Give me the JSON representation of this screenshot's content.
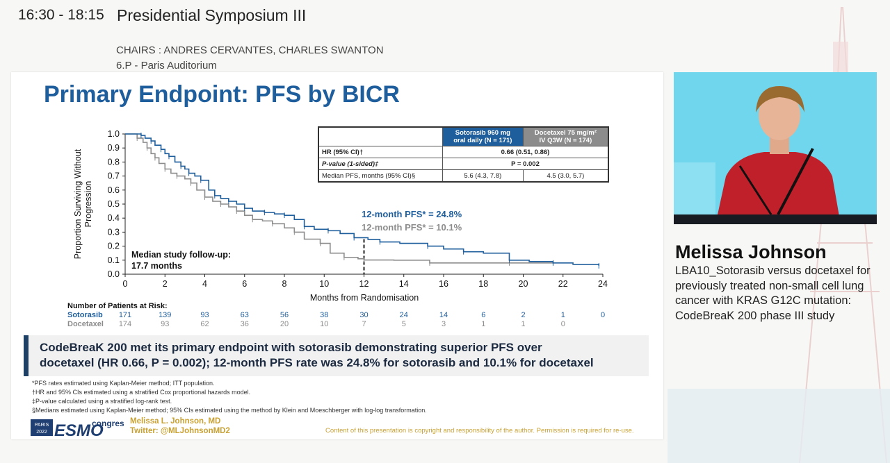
{
  "session": {
    "time": "16:30 - 18:15",
    "title": "Presidential Symposium III",
    "chairs": "CHAIRS : ANDRES CERVANTES, CHARLES SWANTON",
    "room": "6.P - Paris Auditorium"
  },
  "slide": {
    "title": "Primary Endpoint: PFS by BICR",
    "hr_table": {
      "col_sotorasib": [
        "Sotorasib 960 mg",
        "oral daily (N = 171)"
      ],
      "col_docetaxel": [
        "Docetaxel 75 mg/m²",
        "IV Q3W (N = 174)"
      ],
      "rows": [
        {
          "label": "HR (95% CI)†",
          "value": "0.66 (0.51, 0.86)"
        },
        {
          "label": "P-value (1-sided)‡",
          "value": "P = 0.002"
        },
        {
          "label": "Median PFS, months (95% CI)§",
          "sotorasib": "5.6 (4.3, 7.8)",
          "docetaxel": "4.5 (3.0, 5.7)"
        }
      ]
    },
    "pfs12_sotorasib": "12-month PFS* = 24.8%",
    "pfs12_docetaxel": "12-month PFS* = 10.1%",
    "followup": [
      "Median study follow-up:",
      "17.7 months"
    ],
    "risk": {
      "title": "Number of Patients at Risk:",
      "label_sotorasib": "Sotorasib",
      "label_docetaxel": "Docetaxel",
      "sotorasib": [
        "171",
        "139",
        "93",
        "63",
        "56",
        "38",
        "30",
        "24",
        "14",
        "6",
        "2",
        "1",
        "0"
      ],
      "docetaxel": [
        "174",
        "93",
        "62",
        "36",
        "20",
        "10",
        "7",
        "5",
        "3",
        "1",
        "1",
        "0"
      ]
    },
    "conclusion": [
      "CodeBreaK 200 met its primary endpoint with sotorasib demonstrating superior PFS over",
      "docetaxel (HR 0.66, P = 0.002); 12-month PFS rate was 24.8% for sotorasib and 10.1% for docetaxel"
    ],
    "footnotes": [
      "*PFS rates estimated using Kaplan-Meier method; ITT population.",
      "†HR and 95% CIs estimated using a stratified Cox proportional hazards model.",
      "‡P-value calculated using a stratified log-rank test.",
      "§Medians estimated using Kaplan-Meier method; 95% CIs estimated using the method by Klein and Moeschberger with log-log transformation."
    ],
    "logo": {
      "city": "PARIS",
      "year": "2022",
      "name": "ESMO",
      "suffix": "congress"
    },
    "author_name": "Melissa L. Johnson, MD",
    "author_twitter": "Twitter: @MLJohnsonMD2",
    "copyright": "Content of this presentation is copyright and responsibility of the author. Permission is required for re-use."
  },
  "chart_data": {
    "type": "line",
    "title": "Primary Endpoint: PFS by BICR",
    "xlabel": "Months from Randomisation",
    "ylabel": "Proportion Surviving Without Progression",
    "xlim": [
      0,
      24
    ],
    "ylim": [
      0,
      1.0
    ],
    "xticks": [
      "0",
      "2",
      "4",
      "6",
      "8",
      "10",
      "12",
      "14",
      "16",
      "18",
      "20",
      "22",
      "24"
    ],
    "yticks": [
      "0.0",
      "0.1",
      "0.2",
      "0.3",
      "0.4",
      "0.5",
      "0.6",
      "0.7",
      "0.8",
      "0.9",
      "1.0"
    ],
    "reference_line_x": 12,
    "series": [
      {
        "name": "Sotorasib",
        "color": "#1f5e9c",
        "x": [
          0,
          0.8,
          1.0,
          1.3,
          1.5,
          1.8,
          2.0,
          2.2,
          2.5,
          2.8,
          3.0,
          3.2,
          3.5,
          3.8,
          4.2,
          4.5,
          4.8,
          5.2,
          5.6,
          6.0,
          6.4,
          7.0,
          7.5,
          8.0,
          8.5,
          9.0,
          9.5,
          10.2,
          10.8,
          11.5,
          12.2,
          12.8,
          13.8,
          15.2,
          16.0,
          17.0,
          18.0,
          19.3,
          20.3,
          21.5,
          22.5,
          23.8
        ],
        "y": [
          1.0,
          0.99,
          0.97,
          0.95,
          0.92,
          0.89,
          0.86,
          0.84,
          0.8,
          0.77,
          0.75,
          0.72,
          0.7,
          0.67,
          0.6,
          0.56,
          0.54,
          0.52,
          0.5,
          0.47,
          0.45,
          0.44,
          0.43,
          0.42,
          0.39,
          0.34,
          0.32,
          0.31,
          0.29,
          0.26,
          0.248,
          0.23,
          0.22,
          0.2,
          0.18,
          0.16,
          0.15,
          0.1,
          0.09,
          0.08,
          0.07,
          0.06
        ]
      },
      {
        "name": "Docetaxel",
        "color": "#8c8c8c",
        "x": [
          0,
          0.6,
          0.9,
          1.1,
          1.3,
          1.5,
          1.7,
          2.0,
          2.3,
          2.6,
          3.0,
          3.3,
          3.6,
          4.0,
          4.4,
          4.8,
          5.2,
          5.6,
          6.0,
          6.4,
          6.9,
          7.4,
          8.0,
          8.5,
          9.0,
          9.8,
          10.3,
          11.0,
          11.7,
          12.0,
          13.5,
          15.3,
          17.0,
          19.3,
          21.5
        ],
        "y": [
          1.0,
          0.97,
          0.94,
          0.9,
          0.86,
          0.83,
          0.79,
          0.75,
          0.72,
          0.7,
          0.68,
          0.65,
          0.6,
          0.55,
          0.52,
          0.5,
          0.48,
          0.45,
          0.42,
          0.39,
          0.38,
          0.36,
          0.33,
          0.3,
          0.25,
          0.22,
          0.15,
          0.12,
          0.11,
          0.101,
          0.1,
          0.08,
          0.08,
          0.08,
          0.08
        ]
      }
    ]
  },
  "speaker": {
    "name": "Melissa Johnson",
    "talk_title": "LBA10_Sotorasib versus docetaxel for previously treated non-small cell lung cancer with KRAS G12C mutation: CodeBreaK 200 phase III study"
  }
}
